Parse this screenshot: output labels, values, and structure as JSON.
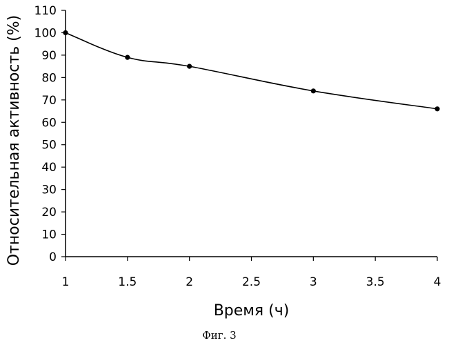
{
  "figure": {
    "caption": "Фиг. 3"
  },
  "chart_data": {
    "type": "line",
    "title": "",
    "xlabel": "Время (ч)",
    "ylabel": "Относительная активность (%)",
    "xlim": [
      1,
      4
    ],
    "ylim": [
      0,
      110
    ],
    "xticks": [
      1,
      1.5,
      2,
      2.5,
      3,
      3.5,
      4
    ],
    "xtick_labels": [
      "1",
      "1.5",
      "2",
      "2.5",
      "3",
      "3.5",
      "4"
    ],
    "yticks": [
      0,
      10,
      20,
      30,
      40,
      50,
      60,
      70,
      80,
      90,
      100,
      110
    ],
    "ytick_labels": [
      "0",
      "10",
      "20",
      "30",
      "40",
      "50",
      "60",
      "70",
      "80",
      "90",
      "100",
      "110"
    ],
    "grid": false,
    "legend": "none",
    "series": [
      {
        "x": [
          1,
          1.5,
          2,
          3,
          4
        ],
        "y": [
          100,
          89,
          85,
          74,
          66
        ],
        "color": "#000000",
        "marker": "circle"
      }
    ]
  }
}
